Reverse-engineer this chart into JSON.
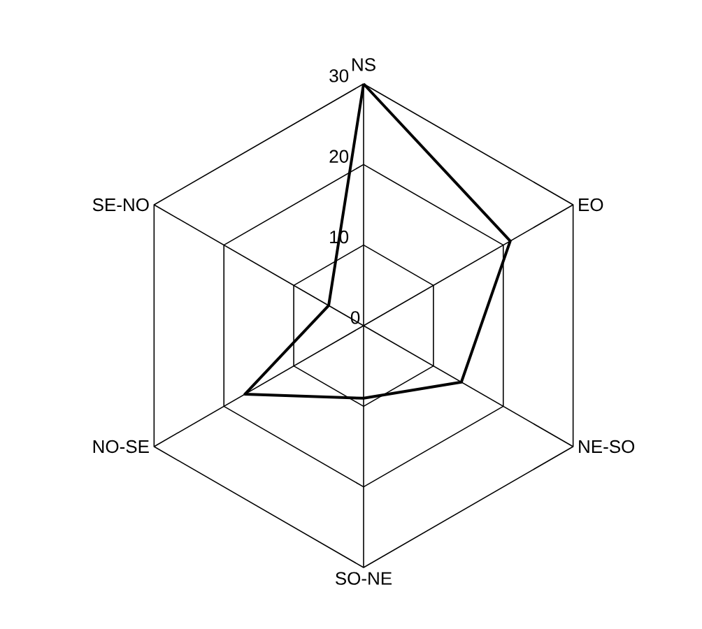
{
  "chart_data": {
    "type": "radar",
    "categories": [
      "NS",
      "EO",
      "NE-SO",
      "SO-NE",
      "NO-SE",
      "SE-NO"
    ],
    "series": [
      {
        "color": "#000000",
        "values": [
          30,
          21,
          14,
          9,
          17,
          5
        ]
      }
    ],
    "ylim": [
      0,
      30
    ],
    "yticks": [
      0,
      10,
      20,
      30
    ],
    "grid": true
  }
}
